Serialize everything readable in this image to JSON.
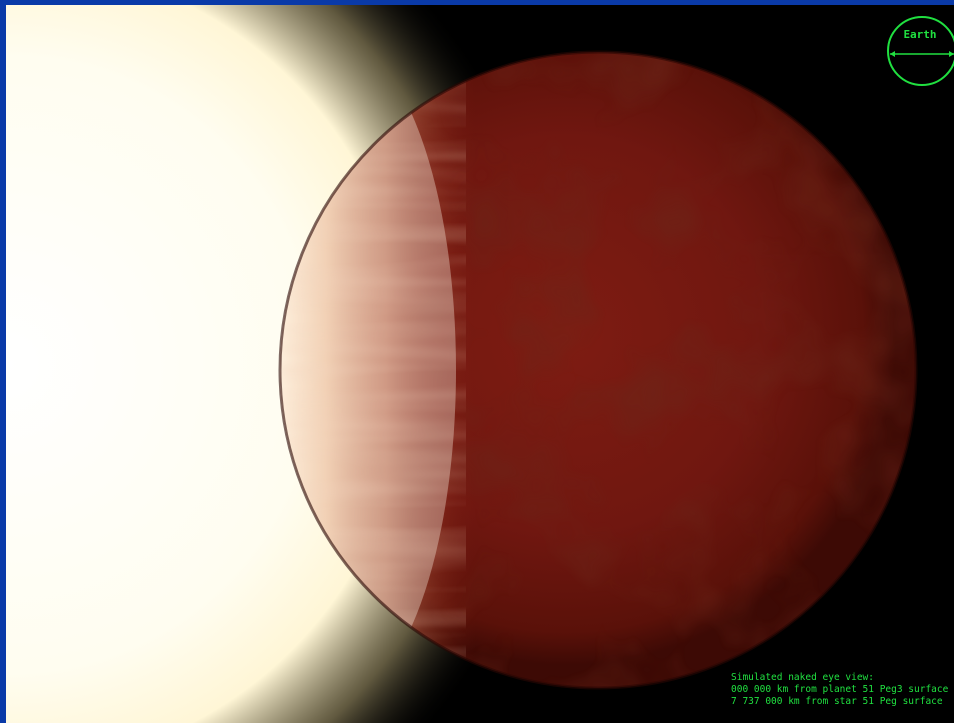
{
  "scene": {
    "star_color": "#fffbe6",
    "planet_color": "#7a1a10",
    "lit_limb_color": "#e8b08c",
    "space_color": "#000000",
    "frame_color": "#0a3aa8"
  },
  "scale_badge": {
    "label": "Earth",
    "icon": "earth-size-reference-circle",
    "color": "#20e040"
  },
  "caption": {
    "line1": "Simulated naked eye view:",
    "line2": "000 000 km from planet 51 Peg3 surface",
    "line3": "7 737 000 km from star 51 Peg surface",
    "color": "#20e040"
  }
}
